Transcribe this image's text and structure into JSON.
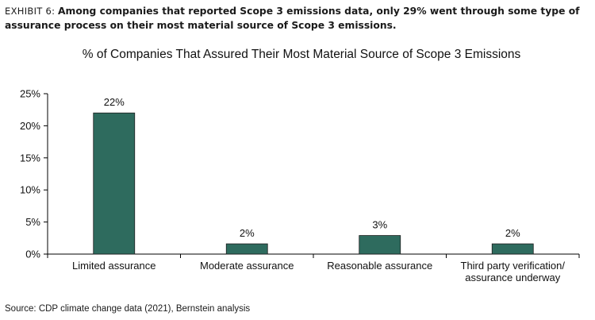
{
  "exhibit": {
    "label": "EXHIBIT 6:",
    "headline": "Among companies that reported Scope 3 emissions data, only 29% went through some type of assurance process on their most material source of Scope 3 emissions."
  },
  "source": "Source: CDP climate change data (2021), Bernstein analysis",
  "colors": {
    "bar": "#2e6b5e",
    "bar_edge": "#1d1d1d",
    "axis": "#000000"
  },
  "chart_data": {
    "type": "bar",
    "title": "% of Companies That Assured Their Most Material Source of Scope 3 Emissions",
    "categories": [
      [
        "Limited assurance"
      ],
      [
        "Moderate assurance"
      ],
      [
        "Reasonable assurance"
      ],
      [
        "Third party verification/",
        "assurance underway"
      ]
    ],
    "values": [
      22,
      1.6,
      2.9,
      1.6
    ],
    "data_labels": [
      "22%",
      "2%",
      "3%",
      "2%"
    ],
    "ylim": [
      0,
      25
    ],
    "yticks": [
      0,
      5,
      10,
      15,
      20,
      25
    ],
    "ytick_labels": [
      "0%",
      "5%",
      "10%",
      "15%",
      "20%",
      "25%"
    ],
    "xlabel": "",
    "ylabel": "",
    "grid": false,
    "legend": "none"
  }
}
